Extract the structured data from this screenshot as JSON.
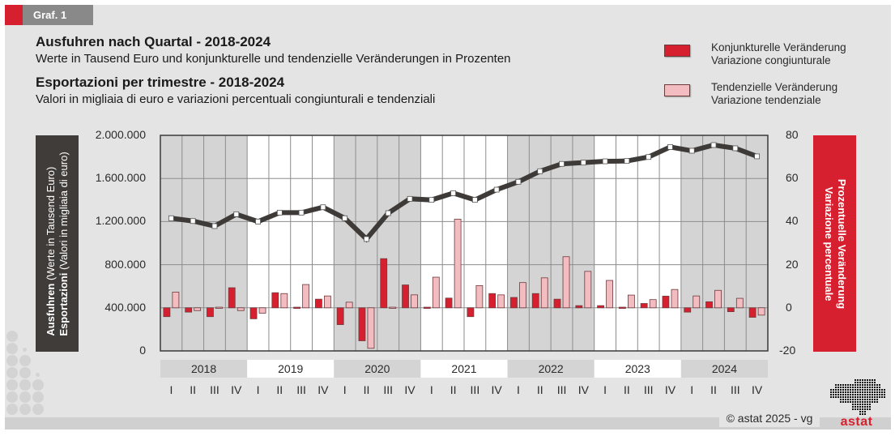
{
  "header": {
    "tag": "Graf. 1",
    "title_de": "Ausfuhren nach Quartal - 2018-2024",
    "subtitle_de": "Werte in Tausend Euro und konjunkturelle und tendenzielle Veränderungen in Prozenten",
    "title_it": "Esportazioni per trimestre - 2018-2024",
    "subtitle_it": "Valori in migliaia di euro e variazioni percentuali congiunturali e tendenziali"
  },
  "legend": [
    {
      "line1": "Konjunkturelle Veränderung",
      "line2": "Variazione congiunturale",
      "color": "#d7202f"
    },
    {
      "line1": "Tendenzielle Veränderung",
      "line2": "Variazione tendenziale",
      "color": "#f2bcc0"
    }
  ],
  "left_axis_title": {
    "de_bold": "Ausfuhren",
    "de": " (Werte in Tausend Euro)",
    "it_bold": "Esportazioni",
    "it": " (Valori in migliaia di euro)"
  },
  "right_axis_title": {
    "line1": "Prozentuelle Veränderung",
    "line2": "Variazione percentuale"
  },
  "footer": {
    "copyright": "© astat 2025 - vg",
    "logo_text": "astat"
  },
  "colors": {
    "red": "#d7202f",
    "pink": "#f2bcc0",
    "line": "#3d3a38",
    "band_gray": "#d4d4d4",
    "band_white": "#ffffff"
  },
  "chart_data": {
    "type": "bar+line",
    "title": "Ausfuhren nach Quartal - 2018-2024 / Esportazioni per trimestre - 2018-2024",
    "years": [
      "2018",
      "2019",
      "2020",
      "2021",
      "2022",
      "2023",
      "2024"
    ],
    "quarters": [
      "I",
      "II",
      "III",
      "IV"
    ],
    "y_left": {
      "label": "Ausfuhren (Werte in Tausend Euro) / Esportazioni (Valori in migliaia di euro)",
      "range": [
        0,
        2000000
      ],
      "ticks": [
        0,
        400000,
        800000,
        1200000,
        1600000,
        2000000
      ],
      "tick_labels": [
        "0",
        "400.000",
        "800.000",
        "1.200.000",
        "1.600.000",
        "2.000.000"
      ]
    },
    "y_right": {
      "label": "Prozentuelle Veränderung / Variazione percentuale",
      "range": [
        -20,
        80
      ],
      "ticks": [
        -20,
        0,
        20,
        40,
        60,
        80
      ],
      "tick_labels": [
        "-20",
        "0",
        "20",
        "40",
        "60",
        "80"
      ]
    },
    "grid": true,
    "legend_position": "top-right",
    "series": [
      {
        "name": "Ausfuhren / Esportazioni",
        "type": "line",
        "axis": "left",
        "values": [
          1231000,
          1205000,
          1158000,
          1268000,
          1200000,
          1283000,
          1283000,
          1333000,
          1231000,
          1038000,
          1278000,
          1411000,
          1401000,
          1464000,
          1401000,
          1496000,
          1569000,
          1667000,
          1735000,
          1747000,
          1759000,
          1762000,
          1799000,
          1892000,
          1857000,
          1910000,
          1880000,
          1805000
        ]
      },
      {
        "name": "Konjunkturelle Veränderung / Variazione congiunturale",
        "type": "bar",
        "axis": "right",
        "values": [
          -4.1,
          -2.0,
          -4.1,
          9.3,
          -5.1,
          7.0,
          0.1,
          4.0,
          -7.8,
          -15.3,
          22.8,
          10.6,
          -0.5,
          4.5,
          -4.1,
          6.6,
          4.8,
          6.6,
          4.0,
          1.0,
          1.0,
          0.2,
          2.0,
          5.4,
          -2.0,
          2.8,
          -1.8,
          -4.4
        ]
      },
      {
        "name": "Tendenzielle Veränderung / Variazione tendenziale",
        "type": "bar",
        "axis": "right",
        "values": [
          7.3,
          -1.3,
          0.5,
          -1.3,
          -2.5,
          6.6,
          10.8,
          5.5,
          2.6,
          -18.8,
          -0.5,
          6.0,
          14.2,
          41.1,
          10.3,
          6.0,
          11.7,
          13.9,
          23.7,
          16.9,
          12.7,
          5.9,
          3.8,
          8.5,
          5.5,
          8.1,
          4.4,
          -3.4
        ]
      }
    ]
  }
}
